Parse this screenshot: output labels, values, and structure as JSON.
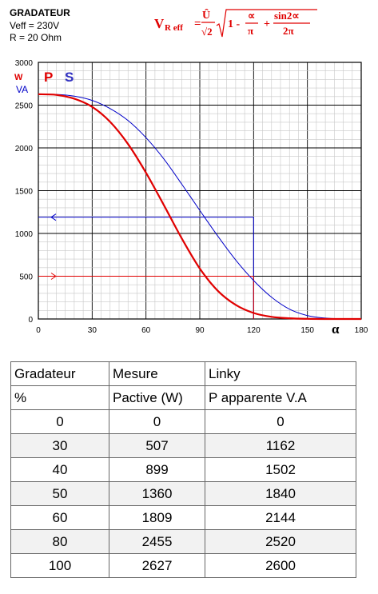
{
  "header": {
    "title": "GRADATEUR",
    "veff": "Veff = 230V",
    "resistance": "R = 20 Ohm"
  },
  "formula": {
    "lhs_main": "V",
    "lhs_sub": "R eff",
    "numerator": "Û",
    "denominator": "√2",
    "one_minus": "1 -",
    "alpha": "∝",
    "pi": "π",
    "plus": "+",
    "sin_term": "sin2∝",
    "two_pi": "2π"
  },
  "chart_data": {
    "type": "line",
    "x_ticks": [
      "0",
      "30",
      "60",
      "90",
      "120",
      "150",
      "180"
    ],
    "y_ticks": [
      "0",
      "500",
      "1000",
      "1500",
      "2000",
      "2500",
      "3000"
    ],
    "xlim": [
      0,
      180
    ],
    "ylim": [
      0,
      3000
    ],
    "x_symbol": "α",
    "unit_w": "W",
    "unit_va": "VA",
    "label_p": "P",
    "label_s": "S",
    "grid": true,
    "x": [
      0,
      10,
      20,
      30,
      40,
      50,
      60,
      70,
      80,
      90,
      100,
      110,
      120,
      130,
      140,
      150,
      160,
      170,
      180
    ],
    "series": [
      {
        "name": "P",
        "color": "#e00000",
        "values": [
          2627,
          2620,
          2575,
          2480,
          2305,
          2045,
          1710,
          1330,
          940,
          590,
          330,
          165,
          70,
          25,
          8,
          2,
          0,
          0,
          0
        ]
      },
      {
        "name": "S",
        "color": "#0000c8",
        "values": [
          2627,
          2625,
          2605,
          2555,
          2460,
          2320,
          2120,
          1870,
          1575,
          1270,
          970,
          690,
          450,
          255,
          115,
          40,
          10,
          2,
          0
        ]
      }
    ],
    "reference_lines": [
      {
        "series": "S",
        "x": 120,
        "y": 1190,
        "color": "#0000c8"
      },
      {
        "series": "P",
        "x": 120,
        "y": 500,
        "color": "#e00000"
      }
    ]
  },
  "table": {
    "header_rows": [
      [
        "Gradateur",
        "Mesure",
        "Linky"
      ],
      [
        "%",
        "Pactive (W)",
        "P apparente  V.A"
      ]
    ],
    "rows": [
      [
        "0",
        "0",
        "0"
      ],
      [
        "30",
        "507",
        "1162"
      ],
      [
        "40",
        "899",
        "1502"
      ],
      [
        "50",
        "1360",
        "1840"
      ],
      [
        "60",
        "1809",
        "2144"
      ],
      [
        "80",
        "2455",
        "2520"
      ],
      [
        "100",
        "2627",
        "2600"
      ]
    ]
  }
}
